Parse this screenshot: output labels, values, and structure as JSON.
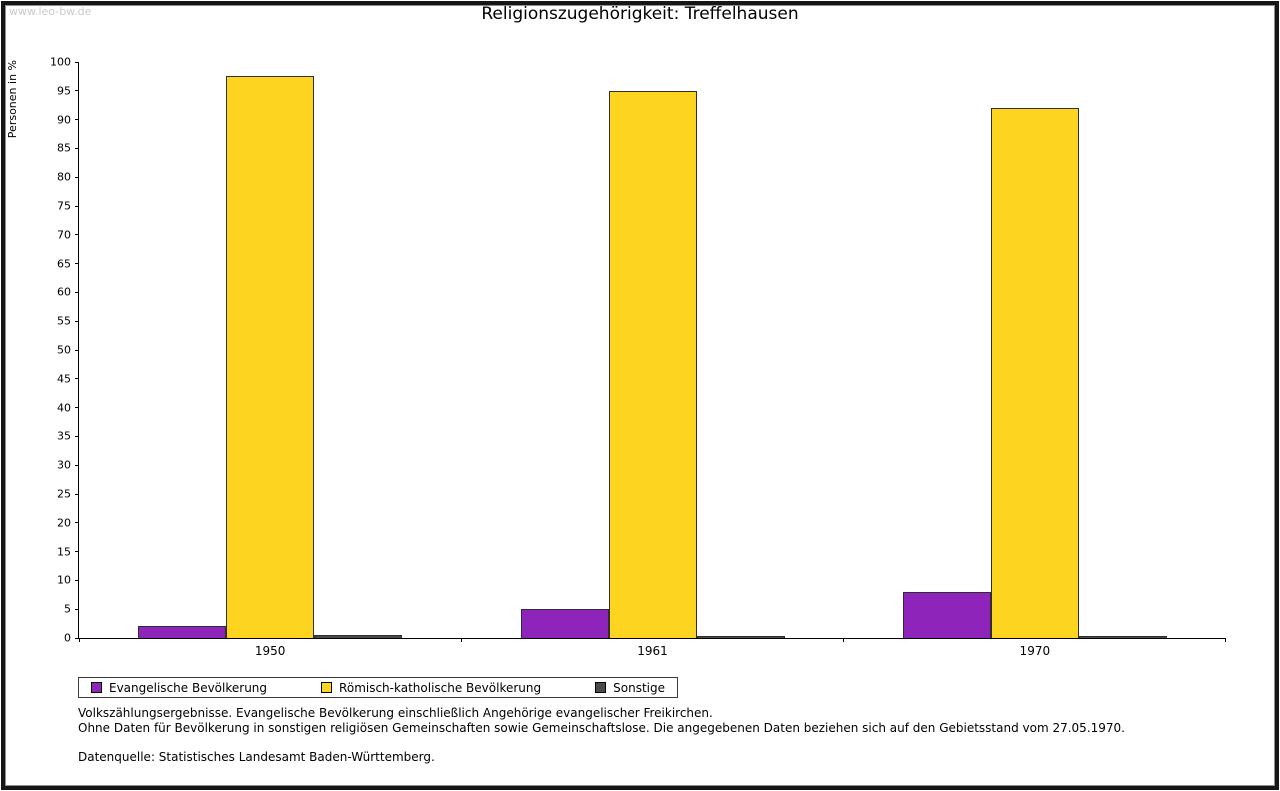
{
  "page": {
    "watermark": "www.leo-bw.de"
  },
  "chart_data": {
    "type": "bar",
    "title": "Religionszugehörigkeit: Treffelhausen",
    "ylabel": "Personen in %",
    "ylim": [
      0,
      100
    ],
    "ytick_step": 5,
    "grid": false,
    "legend_position": "bottom-left",
    "categories": [
      "1950",
      "1961",
      "1970"
    ],
    "series": [
      {
        "name": "Evangelische Bevölkerung",
        "color": "#8f24ba",
        "values": [
          2,
          5,
          8
        ]
      },
      {
        "name": "Römisch-katholische Bevölkerung",
        "color": "#fdd521",
        "values": [
          97.5,
          95,
          92
        ]
      },
      {
        "name": "Sonstige",
        "color": "#4a4a4a",
        "values": [
          0.5,
          0.3,
          0.3
        ]
      }
    ]
  },
  "footnotes": {
    "line1": "Volkszählungsergebnisse. Evangelische Bevölkerung einschließlich Angehörige evangelischer Freikirchen.",
    "line2": "Ohne Daten für Bevölkerung in sonstigen religiösen Gemeinschaften sowie Gemeinschaftslose. Die angegebenen Daten beziehen sich auf den Gebietsstand vom 27.05.1970.",
    "source": "Datenquelle: Statistisches Landesamt Baden-Württemberg."
  }
}
